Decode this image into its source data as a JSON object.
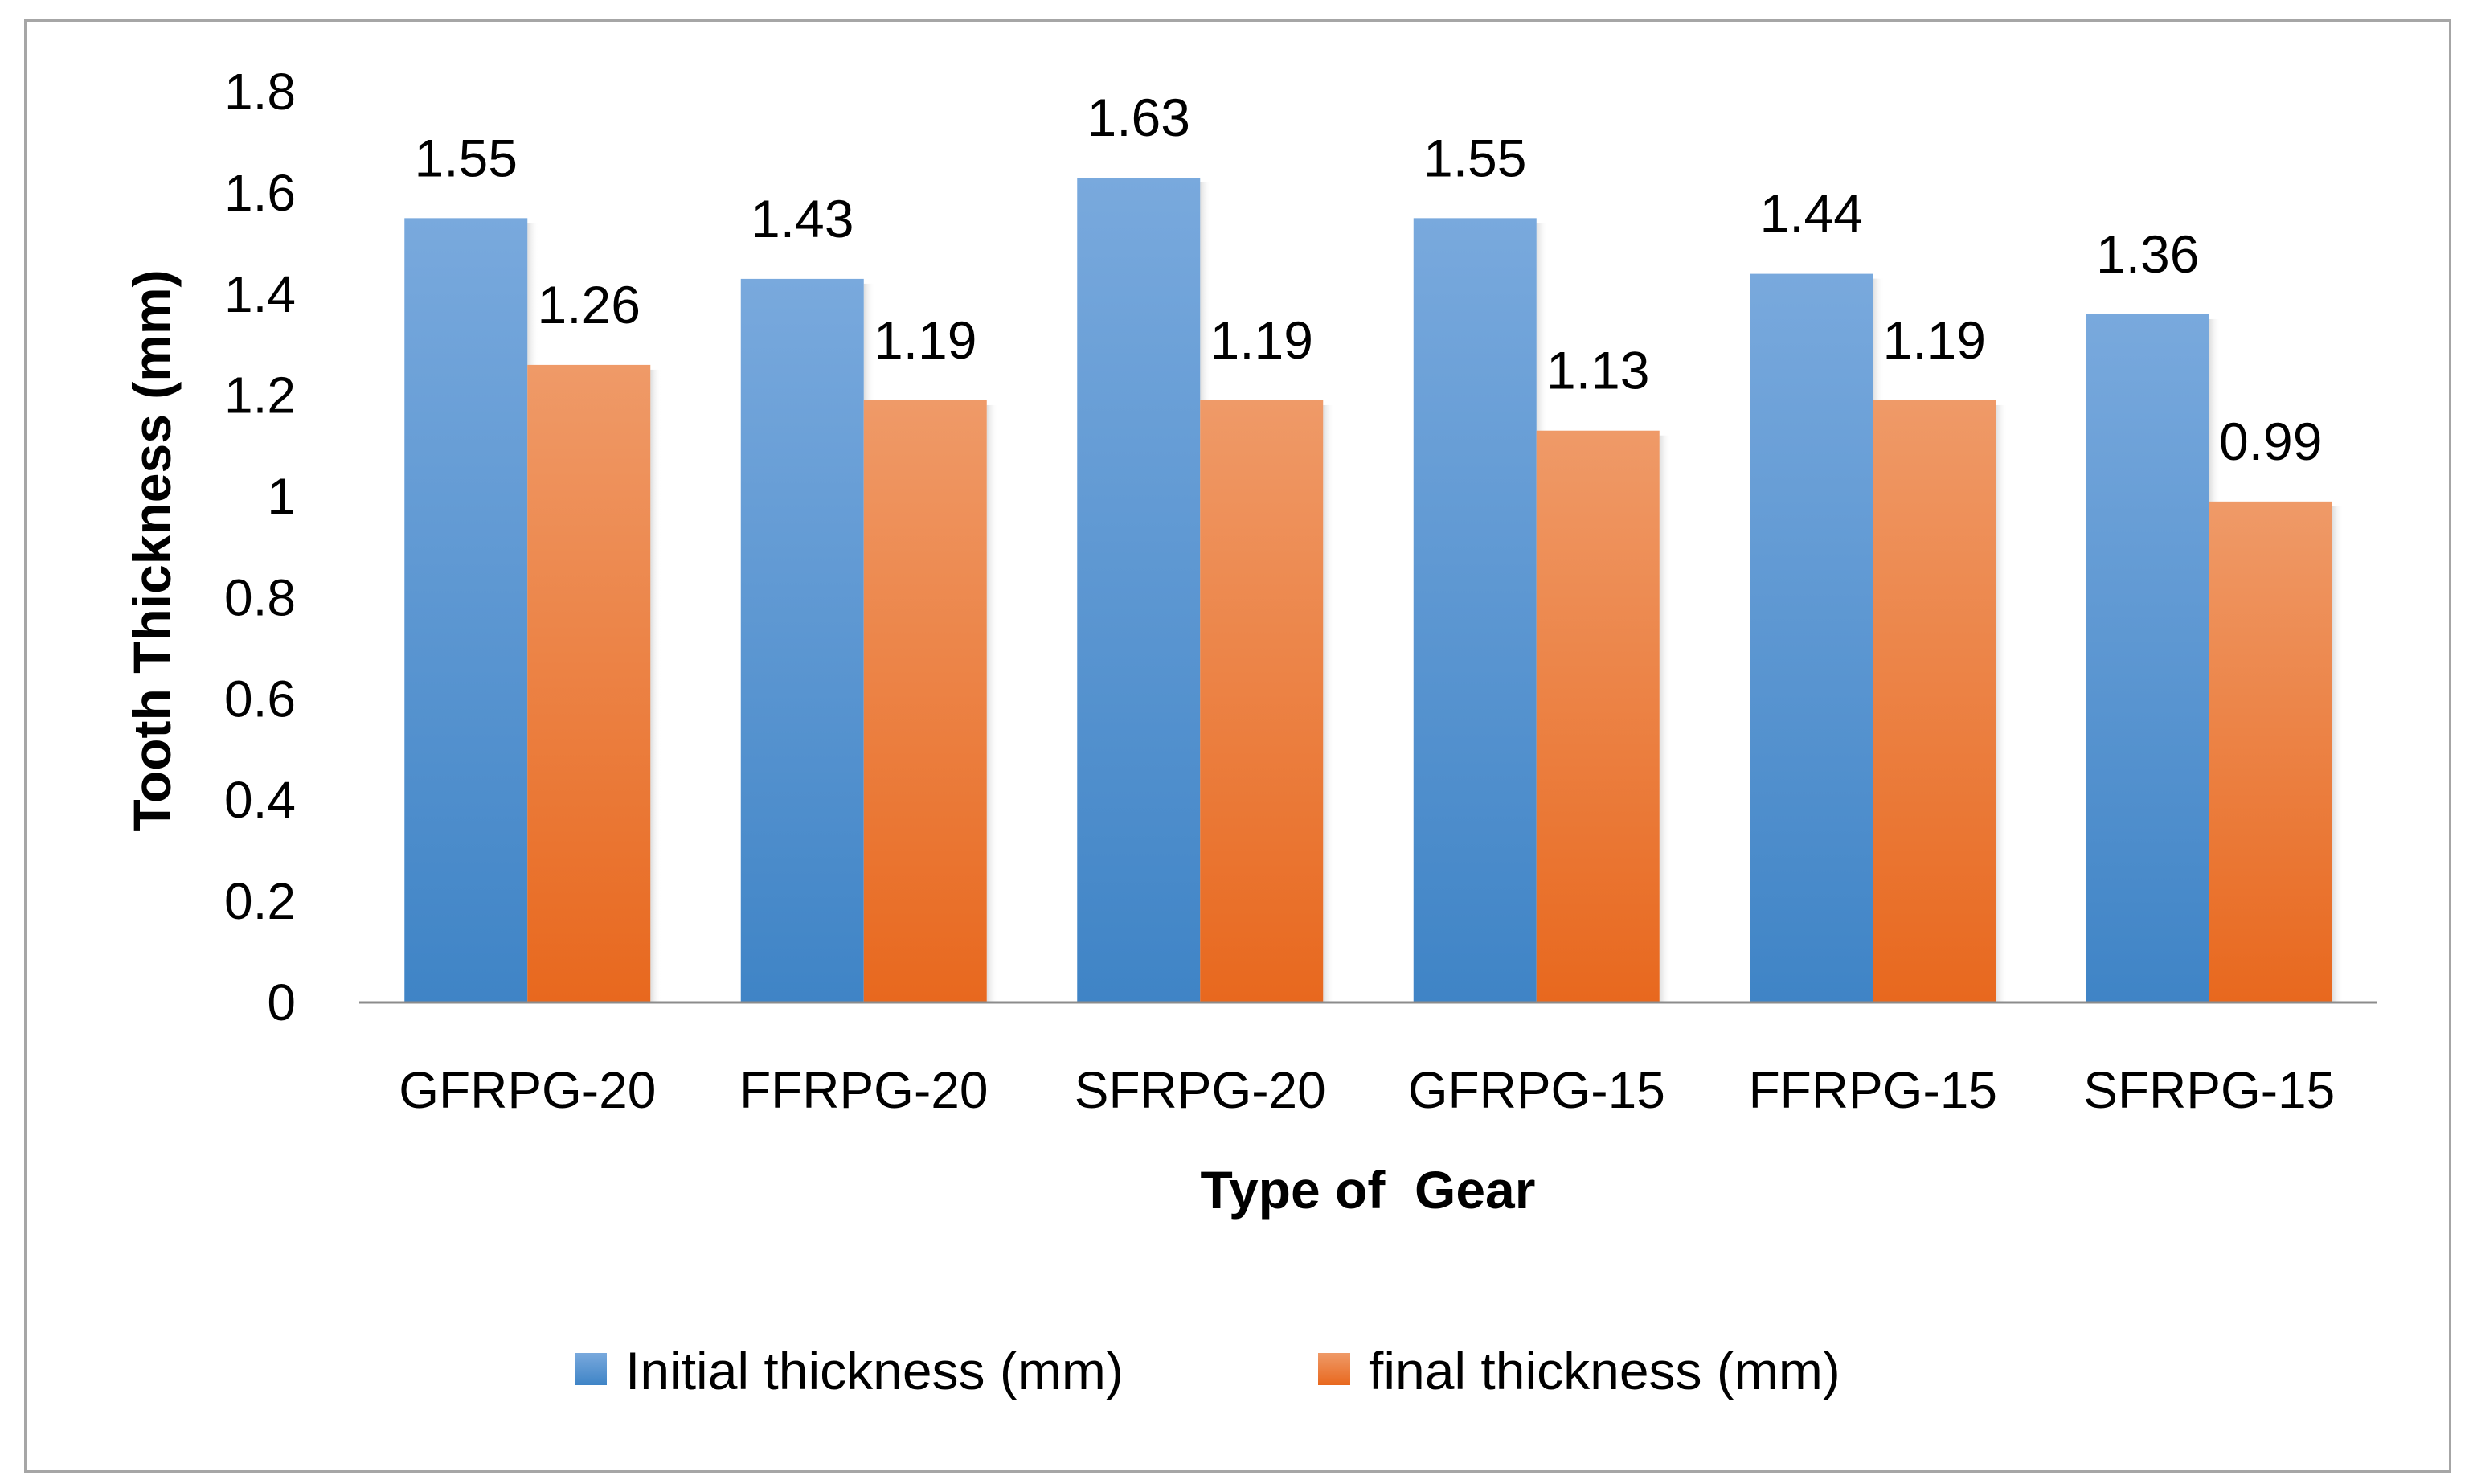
{
  "chart_data": {
    "type": "bar",
    "title": "",
    "xlabel": "Type of  Gear",
    "ylabel": "Tooth Thickness (mm)",
    "ylim": [
      0,
      1.8
    ],
    "yticks": [
      "0",
      "0.2",
      "0.4",
      "0.6",
      "0.8",
      "1",
      "1.2",
      "1.4",
      "1.6",
      "1.8"
    ],
    "ytick_values": [
      0,
      0.2,
      0.4,
      0.6,
      0.8,
      1.0,
      1.2,
      1.4,
      1.6,
      1.8
    ],
    "categories": [
      "GFRPG-20",
      "FFRPG-20",
      "SFRPG-20",
      "GFRPG-15",
      "FFRPG-15",
      "SFRPG-15"
    ],
    "series": [
      {
        "name": "Initial thickness (mm)",
        "values": [
          1.55,
          1.43,
          1.63,
          1.55,
          1.44,
          1.36
        ],
        "labels": [
          "1.55",
          "1.43",
          "1.63",
          "1.55",
          "1.44",
          "1.36"
        ],
        "color_top": "#79a9dd",
        "color_bottom": "#3f84c6"
      },
      {
        "name": "final thickness (mm)",
        "values": [
          1.26,
          1.19,
          1.19,
          1.13,
          1.19,
          0.99
        ],
        "labels": [
          "1.26",
          "1.19",
          "1.19",
          "1.13",
          "1.19",
          "0.99"
        ],
        "color_top": "#ef9a68",
        "color_bottom": "#e8681e"
      }
    ],
    "grid": false,
    "legend": "bottom"
  }
}
